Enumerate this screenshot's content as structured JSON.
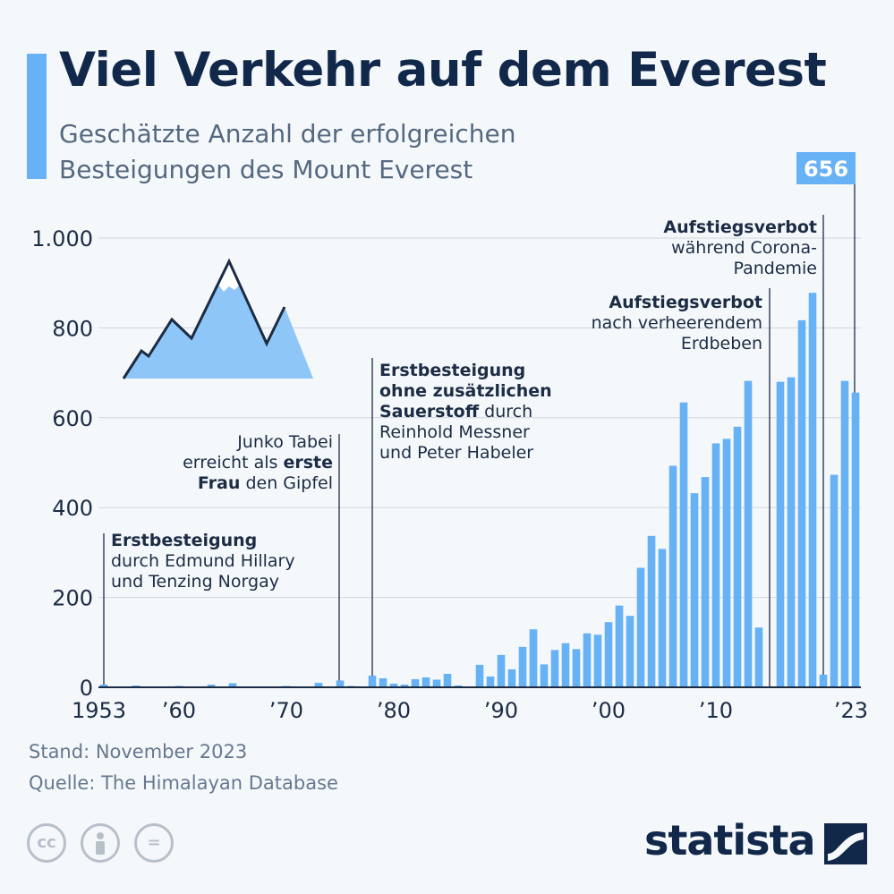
{
  "header": {
    "title": "Viel Verkehr auf dem Everest",
    "subtitle_line1": "Geschätzte Anzahl der erfolgreichen",
    "subtitle_line2": "Besteigungen des Mount Everest"
  },
  "footer": {
    "stand": "Stand: November 2023",
    "quelle": "Quelle: The Himalayan Database",
    "logo": "statista"
  },
  "icons": [
    "cc-icon",
    "person-icon",
    "equal-icon",
    "statista-logo-icon",
    "mountain-icon"
  ],
  "colors": {
    "bar": "#67b1f5",
    "title": "#12284a",
    "accent": "#67b1f5"
  },
  "chart_data": {
    "type": "bar",
    "x": [
      1953,
      1954,
      1955,
      1956,
      1957,
      1958,
      1959,
      1960,
      1961,
      1962,
      1963,
      1964,
      1965,
      1966,
      1967,
      1968,
      1969,
      1970,
      1971,
      1972,
      1973,
      1974,
      1975,
      1976,
      1977,
      1978,
      1979,
      1980,
      1981,
      1982,
      1983,
      1984,
      1985,
      1986,
      1987,
      1988,
      1989,
      1990,
      1991,
      1992,
      1993,
      1994,
      1995,
      1996,
      1997,
      1998,
      1999,
      2000,
      2001,
      2002,
      2003,
      2004,
      2005,
      2006,
      2007,
      2008,
      2009,
      2010,
      2011,
      2012,
      2013,
      2014,
      2015,
      2016,
      2017,
      2018,
      2019,
      2020,
      2021,
      2022,
      2023
    ],
    "values": [
      6,
      0,
      0,
      4,
      0,
      0,
      0,
      3,
      0,
      0,
      6,
      0,
      9,
      0,
      0,
      0,
      0,
      3,
      0,
      0,
      10,
      0,
      15,
      3,
      0,
      26,
      20,
      8,
      6,
      18,
      22,
      17,
      30,
      4,
      2,
      50,
      24,
      72,
      40,
      90,
      129,
      51,
      83,
      98,
      85,
      120,
      117,
      145,
      182,
      159,
      266,
      337,
      308,
      493,
      634,
      432,
      468,
      543,
      553,
      580,
      682,
      133,
      0,
      680,
      690,
      817,
      878,
      28,
      473,
      682,
      656
    ],
    "tick_labels": [
      "1953",
      "’60",
      "’70",
      "’80",
      "’90",
      "’00",
      "’10",
      "’23"
    ],
    "tick_years": [
      1953,
      1960,
      1970,
      1980,
      1990,
      2000,
      2010,
      2023
    ],
    "y_tick_labels": [
      "0",
      "200",
      "400",
      "600",
      "800",
      "1.000"
    ],
    "y_tick_values": [
      0,
      200,
      400,
      600,
      800,
      1000
    ],
    "ylim": [
      0,
      1000
    ],
    "grid": true,
    "value_label": {
      "year": 2023,
      "text": "656"
    },
    "annotations": [
      {
        "year": 1953,
        "lines": [
          {
            "parts": [
              {
                "t": "Erstbesteigung",
                "b": true
              }
            ]
          },
          {
            "parts": [
              {
                "t": "durch Edmund Hillary",
                "b": false
              }
            ]
          },
          {
            "parts": [
              {
                "t": "und Tenzing Norgay",
                "b": false
              }
            ]
          }
        ]
      },
      {
        "year": 1975,
        "lines": [
          {
            "parts": [
              {
                "t": "Junko Tabei",
                "b": false
              }
            ]
          },
          {
            "parts": [
              {
                "t": "erreicht als ",
                "b": false
              },
              {
                "t": "erste",
                "b": true
              }
            ]
          },
          {
            "parts": [
              {
                "t": "Frau",
                "b": true
              },
              {
                "t": " den Gipfel",
                "b": false
              }
            ]
          }
        ]
      },
      {
        "year": 1978,
        "lines": [
          {
            "parts": [
              {
                "t": "Erstbesteigung",
                "b": true
              }
            ]
          },
          {
            "parts": [
              {
                "t": "ohne zusätzlichen",
                "b": true
              }
            ]
          },
          {
            "parts": [
              {
                "t": "Sauerstoff",
                "b": true
              },
              {
                "t": " durch",
                "b": false
              }
            ]
          },
          {
            "parts": [
              {
                "t": "Reinhold Messner",
                "b": false
              }
            ]
          },
          {
            "parts": [
              {
                "t": "und Peter Habeler",
                "b": false
              }
            ]
          }
        ]
      },
      {
        "year": 2015,
        "lines": [
          {
            "parts": [
              {
                "t": "Aufstiegsverbot",
                "b": true
              }
            ]
          },
          {
            "parts": [
              {
                "t": "nach verheerendem",
                "b": false
              }
            ]
          },
          {
            "parts": [
              {
                "t": "Erdbeben",
                "b": false
              }
            ]
          }
        ]
      },
      {
        "year": 2020,
        "lines": [
          {
            "parts": [
              {
                "t": "Aufstiegsverbot",
                "b": true
              }
            ]
          },
          {
            "parts": [
              {
                "t": "während Corona-",
                "b": false
              }
            ]
          },
          {
            "parts": [
              {
                "t": "Pandemie",
                "b": false
              }
            ]
          }
        ]
      }
    ]
  }
}
